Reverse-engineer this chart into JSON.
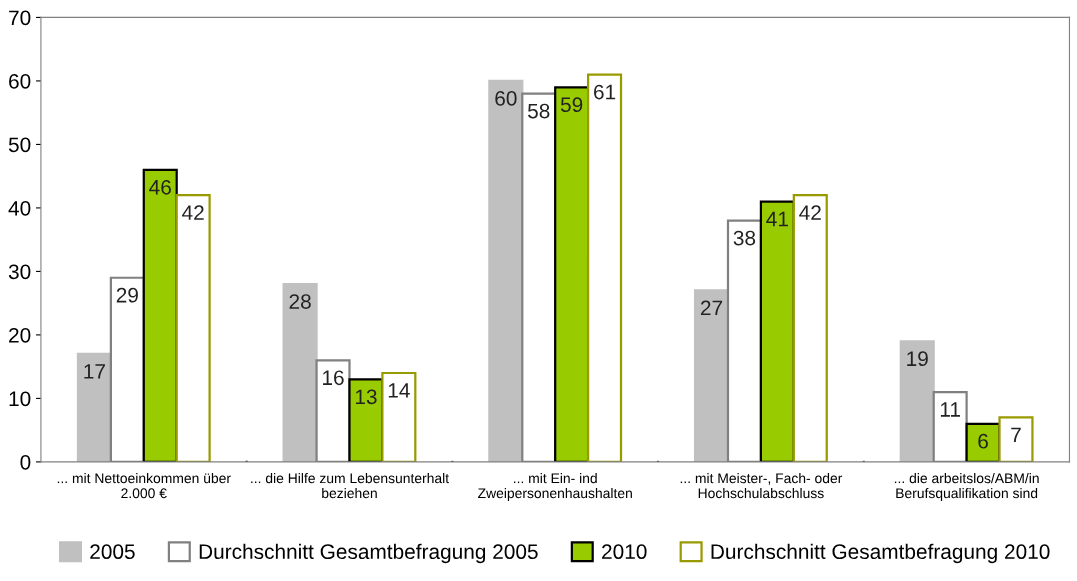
{
  "chart_data": {
    "type": "bar",
    "categories": [
      "... mit Nettoeinkommen über\n2.000 €",
      "... die Hilfe zum Lebensunterhalt\nbeziehen",
      "... mit Ein- ind\nZweipersonenhaushalten",
      "... mit Meister-, Fach- oder\nHochschulabschluss",
      "... die arbeitslos/ABM/in\nBerufsqualifikation sind"
    ],
    "series": [
      {
        "name": "2005",
        "color": "#c0c0c0",
        "values": [
          17,
          28,
          60,
          27,
          19
        ]
      },
      {
        "name": "Durchschnitt Gesamtbefragung 2005",
        "color": "#808080",
        "values": [
          29,
          16,
          58,
          38,
          11
        ]
      },
      {
        "name": "2010",
        "color": "#99cc00",
        "values": [
          46,
          13,
          59,
          41,
          6
        ]
      },
      {
        "name": "Durchschnitt Gesamtbefragung 2010",
        "color": "#999900",
        "values": [
          42,
          14,
          61,
          42,
          7
        ]
      }
    ],
    "ylim": [
      0,
      70
    ],
    "yticks": [
      0,
      10,
      20,
      30,
      40,
      50,
      60,
      70
    ],
    "grid": false,
    "legend": "bottom",
    "data_labels": true
  }
}
